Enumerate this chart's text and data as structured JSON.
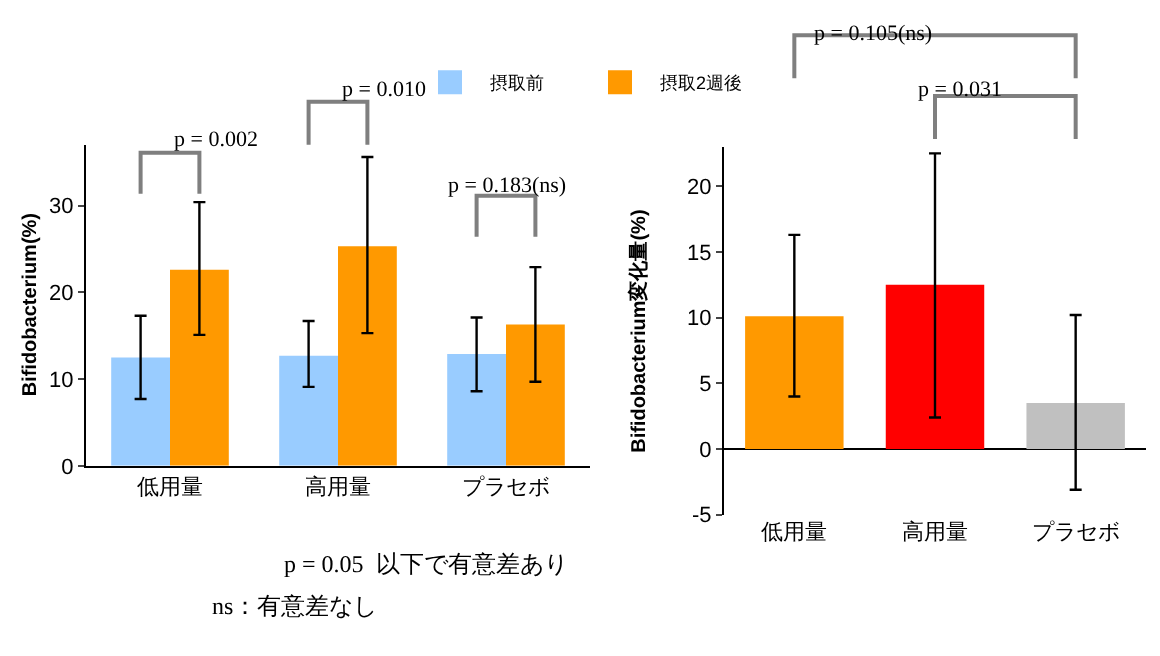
{
  "chart_data": [
    {
      "type": "bar",
      "categories": [
        "低用量",
        "高用量",
        "プラセボ"
      ],
      "ylabel": "Bifidobacterium(%)",
      "ylim": [
        0,
        37
      ],
      "yticks": [
        0,
        10,
        20,
        30
      ],
      "grid": false,
      "legend": "top right",
      "series": [
        {
          "name": "摂取前",
          "color": "#99ccff",
          "values": [
            12.5,
            12.7,
            12.9
          ],
          "errors": [
            [
              7.7,
              17.3
            ],
            [
              9.1,
              16.7
            ],
            [
              8.6,
              17.1
            ]
          ]
        },
        {
          "name": "摂取2週後",
          "color": "#ff9900",
          "values": [
            22.6,
            25.3,
            16.3
          ],
          "errors": [
            [
              15.1,
              30.4
            ],
            [
              15.3,
              35.6
            ],
            [
              9.7,
              22.9
            ]
          ]
        }
      ],
      "annotations": [
        "p = 0.002",
        "p = 0.010",
        "p = 0.183(ns)",
        "p = 0.05  以下で有意差あり",
        "ns：有意差なし"
      ]
    },
    {
      "type": "bar",
      "categories": [
        "低用量",
        "高用量",
        "プラセボ"
      ],
      "ylabel": "Bifidobacterium変化量(%)",
      "ylim": [
        -5,
        23
      ],
      "yticks": [
        -5,
        0,
        5,
        10,
        15,
        20
      ],
      "grid": false,
      "legend": false,
      "values": [
        10.1,
        12.5,
        3.5
      ],
      "colors": [
        "#ff9900",
        "#ff0000",
        "#c0c0c0"
      ],
      "errors": [
        [
          4.0,
          16.3
        ],
        [
          2.4,
          22.5
        ],
        [
          -3.1,
          10.2
        ]
      ],
      "annotations": [
        "p = 0.105(ns)",
        "p = 0.031"
      ]
    }
  ]
}
